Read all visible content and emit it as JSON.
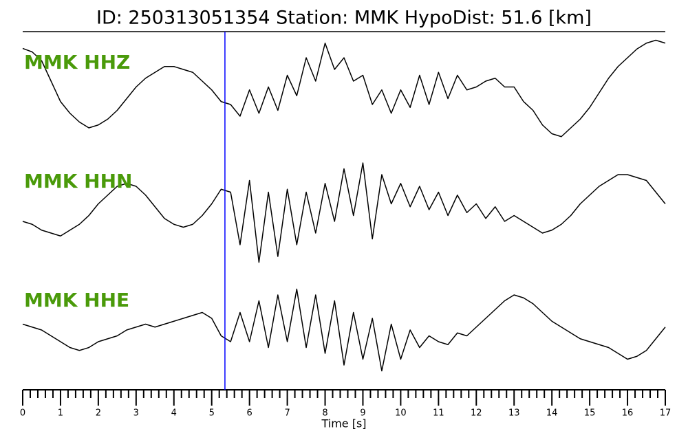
{
  "chart_data": {
    "type": "line",
    "title": "ID: 250313051354   Station: MMK   HypoDist:     51.6 [km]",
    "xlabel": "Time [s]",
    "xlim": [
      0,
      17
    ],
    "xticks": [
      0,
      1,
      2,
      3,
      4,
      5,
      6,
      7,
      8,
      9,
      10,
      11,
      12,
      13,
      14,
      15,
      16,
      17
    ],
    "minor_ticks": 5,
    "ylim": [
      -1,
      1
    ],
    "pick_time": 5.35,
    "pick_color": "#0000ff",
    "label_color": "#4a9a0a",
    "x": [
      0,
      0.25,
      0.5,
      0.75,
      1,
      1.25,
      1.5,
      1.75,
      2,
      2.25,
      2.5,
      2.75,
      3,
      3.25,
      3.5,
      3.75,
      4,
      4.25,
      4.5,
      4.75,
      5,
      5.25,
      5.5,
      5.75,
      6,
      6.25,
      6.5,
      6.75,
      7,
      7.25,
      7.5,
      7.75,
      8,
      8.25,
      8.5,
      8.75,
      9,
      9.25,
      9.5,
      9.75,
      10,
      10.25,
      10.5,
      10.75,
      11,
      11.25,
      11.5,
      11.75,
      12,
      12.25,
      12.5,
      12.75,
      13,
      13.25,
      13.5,
      13.75,
      14,
      14.25,
      14.5,
      14.75,
      15,
      15.25,
      15.5,
      15.75,
      16,
      16.25,
      16.5,
      16.75,
      17
    ],
    "series": [
      {
        "name": "MMK HHZ",
        "color": "#000000",
        "values": [
          0.76,
          0.7,
          0.55,
          0.2,
          -0.15,
          -0.35,
          -0.5,
          -0.6,
          -0.55,
          -0.45,
          -0.3,
          -0.1,
          0.1,
          0.25,
          0.35,
          0.45,
          0.45,
          0.4,
          0.35,
          0.2,
          0.05,
          -0.15,
          -0.2,
          -0.4,
          0.05,
          -0.35,
          0.1,
          -0.3,
          0.3,
          -0.05,
          0.6,
          0.2,
          0.85,
          0.4,
          0.6,
          0.2,
          0.3,
          -0.2,
          0.05,
          -0.35,
          0.05,
          -0.25,
          0.3,
          -0.2,
          0.35,
          -0.1,
          0.3,
          0.05,
          0.1,
          0.2,
          0.25,
          0.1,
          0.1,
          -0.15,
          -0.3,
          -0.55,
          -0.7,
          -0.75,
          -0.6,
          -0.45,
          -0.25,
          0,
          0.25,
          0.45,
          0.6,
          0.75,
          0.85,
          0.9,
          0.85
        ]
      },
      {
        "name": "MMK HHN",
        "color": "#000000",
        "values": [
          -0.2,
          -0.25,
          -0.35,
          -0.4,
          -0.45,
          -0.35,
          -0.25,
          -0.1,
          0.1,
          0.25,
          0.4,
          0.45,
          0.4,
          0.25,
          0.05,
          -0.15,
          -0.25,
          -0.3,
          -0.25,
          -0.1,
          0.1,
          0.35,
          0.3,
          -0.6,
          0.5,
          -0.9,
          0.3,
          -0.8,
          0.35,
          -0.6,
          0.3,
          -0.4,
          0.45,
          -0.2,
          0.7,
          -0.1,
          0.8,
          -0.5,
          0.6,
          0.1,
          0.45,
          0.05,
          0.4,
          0,
          0.3,
          -0.1,
          0.25,
          -0.05,
          0.1,
          -0.15,
          0.05,
          -0.2,
          -0.1,
          -0.2,
          -0.3,
          -0.4,
          -0.35,
          -0.25,
          -0.1,
          0.1,
          0.25,
          0.4,
          0.5,
          0.6,
          0.6,
          0.55,
          0.5,
          0.3,
          0.1
        ]
      },
      {
        "name": "MMK HHE",
        "color": "#000000",
        "values": [
          0.1,
          0.05,
          0,
          -0.1,
          -0.2,
          -0.3,
          -0.35,
          -0.3,
          -0.2,
          -0.15,
          -0.1,
          0,
          0.05,
          0.1,
          0.05,
          0.1,
          0.15,
          0.2,
          0.25,
          0.3,
          0.2,
          -0.1,
          -0.2,
          0.3,
          -0.2,
          0.5,
          -0.3,
          0.6,
          -0.2,
          0.7,
          -0.3,
          0.6,
          -0.4,
          0.5,
          -0.6,
          0.3,
          -0.5,
          0.2,
          -0.7,
          0.1,
          -0.5,
          0,
          -0.3,
          -0.1,
          -0.2,
          -0.25,
          -0.05,
          -0.1,
          0.05,
          0.2,
          0.35,
          0.5,
          0.6,
          0.55,
          0.45,
          0.3,
          0.15,
          0.05,
          -0.05,
          -0.15,
          -0.2,
          -0.25,
          -0.3,
          -0.4,
          -0.5,
          -0.45,
          -0.35,
          -0.15,
          0.05
        ]
      }
    ]
  }
}
